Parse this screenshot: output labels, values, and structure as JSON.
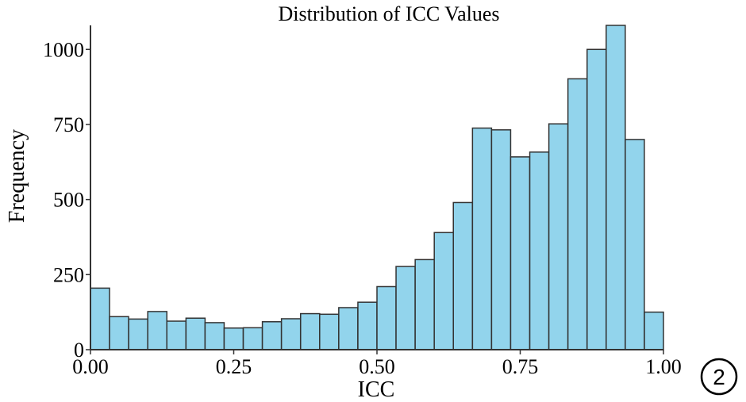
{
  "chart_data": {
    "type": "bar",
    "title": "Distribution of ICC Values",
    "xlabel": "ICC",
    "ylabel": "Frequency",
    "xlim": [
      0,
      1
    ],
    "ylim": [
      0,
      1080
    ],
    "xticks": [
      0.0,
      0.25,
      0.5,
      0.75,
      1.0
    ],
    "xtick_labels": [
      "0.00",
      "0.25",
      "0.50",
      "0.75",
      "1.00"
    ],
    "yticks": [
      0,
      250,
      500,
      750,
      1000
    ],
    "ytick_labels": [
      "0",
      "250",
      "500",
      "750",
      "1000"
    ],
    "bin_width": 0.0333,
    "bin_starts": [
      0.0,
      0.0333,
      0.0667,
      0.1,
      0.1333,
      0.1667,
      0.2,
      0.2333,
      0.2667,
      0.3,
      0.3333,
      0.3667,
      0.4,
      0.4333,
      0.4667,
      0.5,
      0.5333,
      0.5667,
      0.6,
      0.6333,
      0.6667,
      0.7,
      0.7333,
      0.7667,
      0.8,
      0.8333,
      0.8667,
      0.9,
      0.9333,
      0.9667
    ],
    "values": [
      205,
      110,
      102,
      127,
      95,
      105,
      90,
      72,
      73,
      93,
      103,
      120,
      118,
      140,
      158,
      210,
      277,
      300,
      390,
      490,
      738,
      732,
      642,
      658,
      752,
      902,
      1000,
      1080,
      700,
      125
    ],
    "bar_color": "#92D4EC",
    "edge_color": "#333333",
    "grid": false,
    "legend": "none"
  },
  "panel_label": "2"
}
